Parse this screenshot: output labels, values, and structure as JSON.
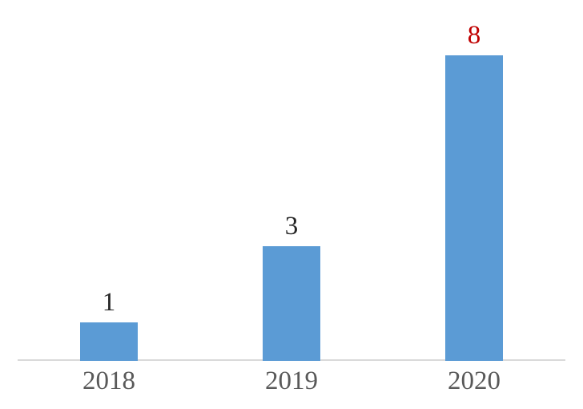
{
  "chart_data": {
    "type": "bar",
    "title": "",
    "categories": [
      "2018",
      "2019",
      "2020"
    ],
    "values": [
      1,
      3,
      8
    ],
    "data_labels": [
      "1",
      "3",
      "8"
    ],
    "data_label_colors": [
      "#262626",
      "#262626",
      "#c00000"
    ],
    "bar_color": "#5b9bd5",
    "axis_line_color": "#d9d9d9",
    "category_label_color": "#595959",
    "background_color": "#ffffff",
    "xlabel": "",
    "ylabel": "",
    "ylim": [
      0,
      8.4
    ],
    "grid": false,
    "legend": false,
    "y_axis_labels_visible": false
  }
}
